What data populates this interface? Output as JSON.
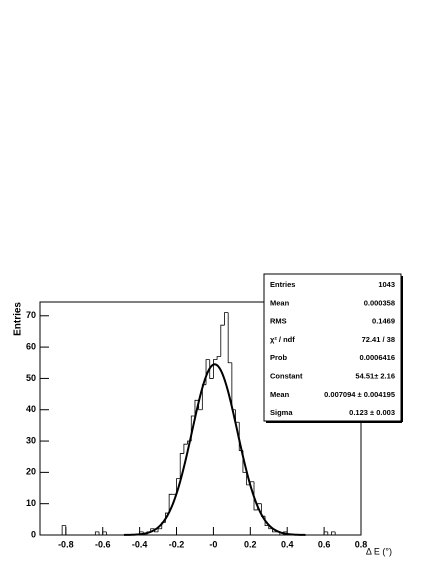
{
  "chart_data": {
    "type": "histogram",
    "x_label": "Δ E (°)",
    "y_label": "Entries",
    "bins": [
      -0.92,
      -0.9,
      -0.88,
      -0.86,
      -0.84,
      -0.82,
      -0.8,
      -0.78,
      -0.76,
      -0.74,
      -0.72,
      -0.7,
      -0.68,
      -0.66,
      -0.64,
      -0.62,
      -0.6,
      -0.58,
      -0.56,
      -0.54,
      -0.52,
      -0.5,
      -0.48,
      -0.46,
      -0.44,
      -0.42,
      -0.4,
      -0.38,
      -0.36,
      -0.34,
      -0.32,
      -0.3,
      -0.28,
      -0.26,
      -0.24,
      -0.22,
      -0.2,
      -0.18,
      -0.16,
      -0.14,
      -0.12,
      -0.1,
      -0.08,
      -0.06,
      -0.04,
      -0.02,
      0.0,
      0.02,
      0.04,
      0.06,
      0.08,
      0.1,
      0.12,
      0.14,
      0.16,
      0.18,
      0.2,
      0.22,
      0.24,
      0.26,
      0.28,
      0.3,
      0.32,
      0.34,
      0.36,
      0.38,
      0.4,
      0.42,
      0.44,
      0.46,
      0.48,
      0.5,
      0.52,
      0.54,
      0.56,
      0.58,
      0.6,
      0.62,
      0.64,
      0.66,
      0.68,
      0.7,
      0.72,
      0.74,
      0.76,
      0.78,
      0.8
    ],
    "values": [
      0,
      0,
      0,
      0,
      0,
      3,
      0,
      0,
      0,
      0,
      0,
      0,
      0,
      0,
      1,
      0,
      1,
      0,
      0,
      0,
      0,
      0,
      0,
      0,
      0,
      0,
      1,
      0,
      1,
      2,
      1,
      2,
      4,
      7,
      13,
      13,
      18,
      26,
      29,
      30,
      38,
      43,
      40,
      48,
      56,
      50,
      56,
      57,
      67,
      71,
      55,
      40,
      36,
      27,
      20,
      16,
      17,
      8,
      10,
      6,
      3,
      2,
      1,
      1,
      0,
      1,
      0,
      0,
      0,
      0,
      0,
      0,
      0,
      0,
      0,
      0,
      1,
      0,
      1,
      0,
      0,
      0,
      0,
      0,
      0,
      0
    ],
    "color": "#000000",
    "fit": {
      "constant": 54.51,
      "mean": 0.007094,
      "sigma": 0.123
    },
    "stats": [
      {
        "label": "Entries",
        "value": "1043"
      },
      {
        "label": "Mean",
        "value": "0.000358"
      },
      {
        "label": "RMS",
        "value": "0.1469"
      },
      {
        "label": "χ² / ndf",
        "value": "72.41 / 38"
      },
      {
        "label": "Prob",
        "value": "0.0006416"
      },
      {
        "label": "Constant",
        "value": "54.51± 2.16"
      },
      {
        "label": "Mean",
        "value": "0.007094 ± 0.004195"
      },
      {
        "label": "Sigma",
        "value": "0.123 ± 0.003"
      }
    ],
    "xlim": [
      -0.94,
      0.8
    ],
    "xticks": [
      -0.8,
      -0.6,
      -0.4,
      -0.2,
      {
        "value": 0,
        "label": "-0"
      },
      0.2,
      0.4,
      0.6,
      0.8
    ],
    "ylim": [
      0,
      74.4
    ],
    "yticks": [
      0,
      10,
      20,
      30,
      40,
      50,
      60,
      70
    ]
  }
}
